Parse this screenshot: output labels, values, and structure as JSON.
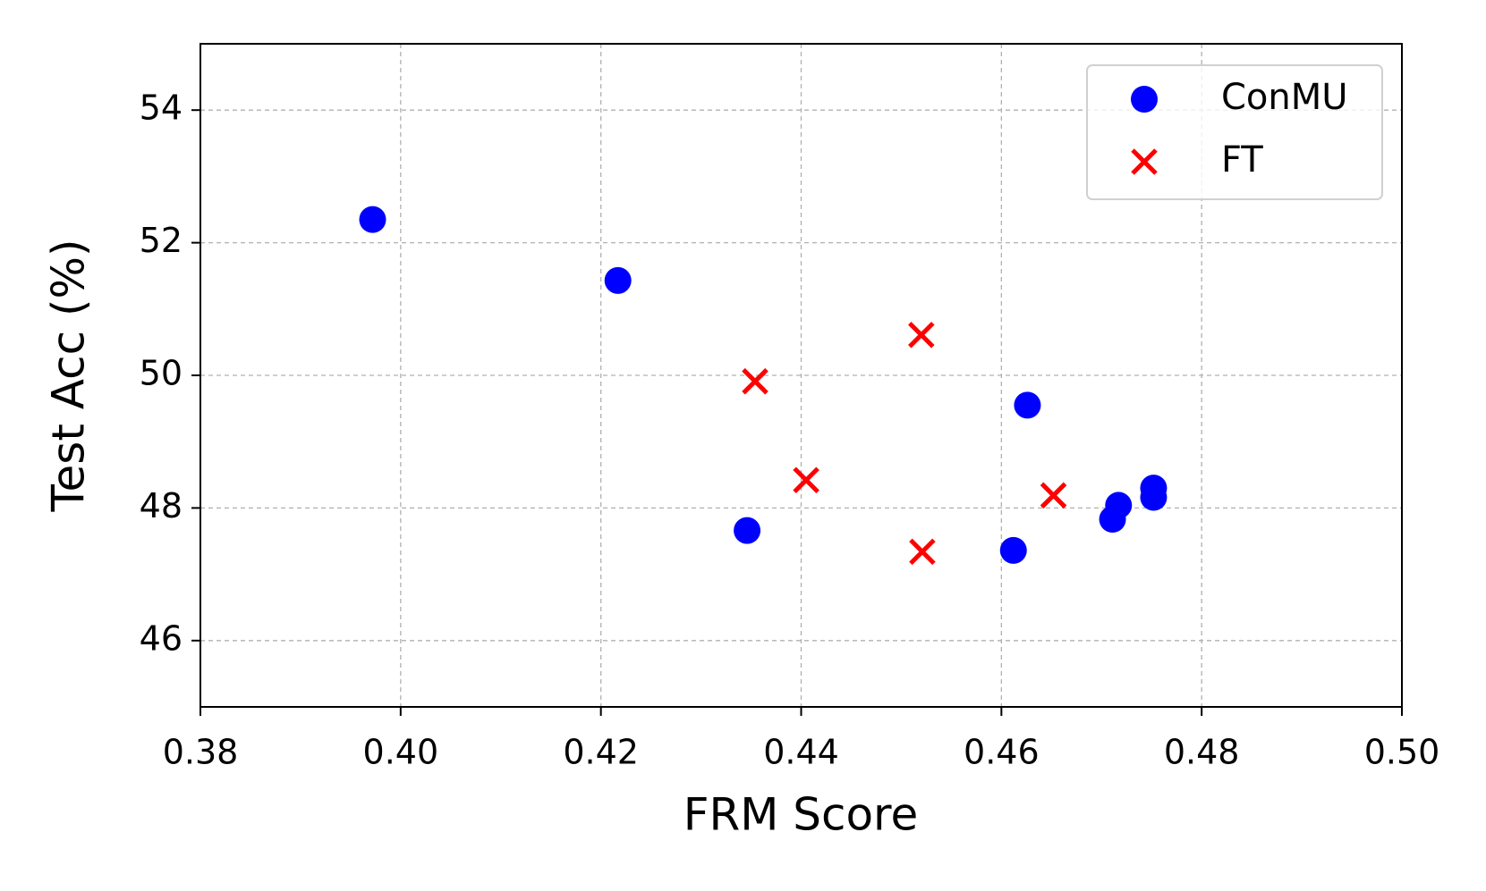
{
  "chart_data": {
    "type": "scatter",
    "x_label": "FRM Score",
    "y_label": "Test Acc (%)",
    "xlim": [
      0.38,
      0.5
    ],
    "xticks": [
      {
        "value": 0.38,
        "label": "0.38"
      },
      {
        "value": 0.4,
        "label": "0.40"
      },
      {
        "value": 0.42,
        "label": "0.42"
      },
      {
        "value": 0.44,
        "label": "0.44"
      },
      {
        "value": 0.46,
        "label": "0.46"
      },
      {
        "value": 0.48,
        "label": "0.48"
      },
      {
        "value": 0.5,
        "label": "0.50"
      }
    ],
    "ylim": [
      45,
      55
    ],
    "yticks": [
      46,
      48,
      50,
      52,
      54
    ],
    "grid": true,
    "legend": "upper right",
    "series": [
      {
        "name": "ConMU",
        "color": "#0000ff",
        "marker": "o",
        "x": [
          0.3972,
          0.4217,
          0.4346,
          0.4626,
          0.4612,
          0.4711,
          0.4717,
          0.4752,
          0.4752
        ],
        "values": [
          52.35,
          51.43,
          47.66,
          49.55,
          47.36,
          47.83,
          48.04,
          48.3,
          48.16
        ]
      },
      {
        "name": "FT",
        "color": "#ff0000",
        "marker": "x",
        "x": [
          0.4354,
          0.452,
          0.4405,
          0.4652,
          0.4521
        ],
        "values": [
          49.91,
          50.61,
          48.42,
          48.19,
          47.34
        ]
      }
    ]
  }
}
